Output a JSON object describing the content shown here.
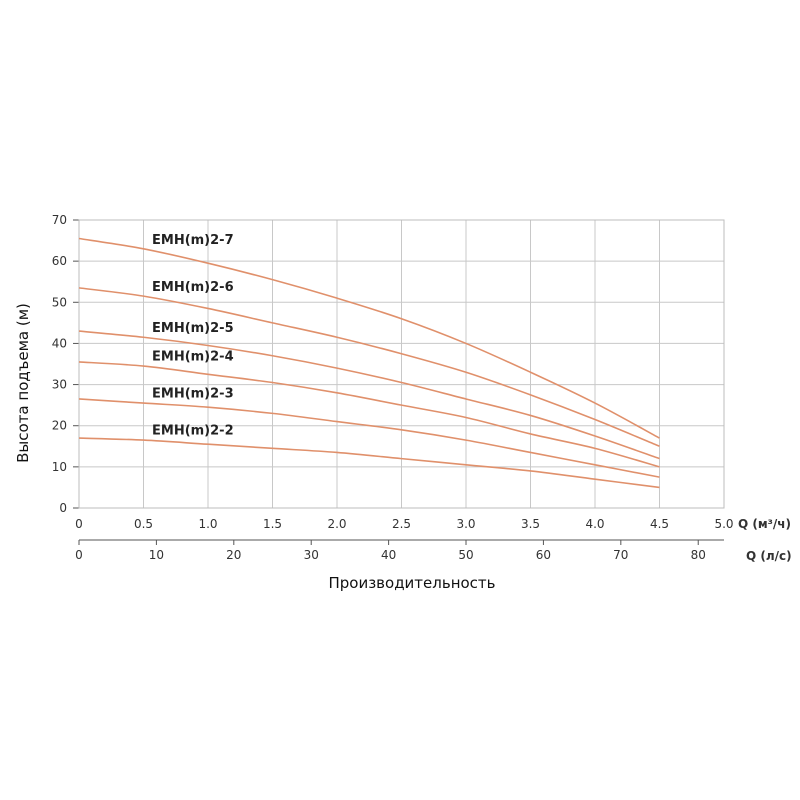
{
  "chart_data": {
    "type": "line",
    "ylabel": "Высота подъема (м)",
    "xlabel": "Производительность",
    "x_axis_primary": {
      "unit_label": "Q (м³/ч)",
      "range": [
        0,
        5.0
      ],
      "ticks": [
        0,
        0.5,
        1.0,
        1.5,
        2.0,
        2.5,
        3.0,
        3.5,
        4.0,
        4.5,
        5.0
      ],
      "tick_labels": [
        "0",
        "0.5",
        "1.0",
        "1.5",
        "2.0",
        "2.5",
        "3.0",
        "3.5",
        "4.0",
        "4.5",
        "5.0"
      ]
    },
    "x_axis_secondary": {
      "unit_label": "Q (л/с)",
      "range": [
        0,
        83.33
      ],
      "ticks": [
        0,
        10,
        20,
        30,
        40,
        50,
        60,
        70,
        80
      ],
      "tick_labels": [
        "0",
        "10",
        "20",
        "30",
        "40",
        "50",
        "60",
        "70",
        "80"
      ]
    },
    "y_axis": {
      "range": [
        0,
        70
      ],
      "ticks": [
        0,
        10,
        20,
        30,
        40,
        50,
        60,
        70
      ],
      "tick_labels": [
        "0",
        "10",
        "20",
        "30",
        "40",
        "50",
        "60",
        "70"
      ]
    },
    "grid": true,
    "curve_color": "#e0906b",
    "series": [
      {
        "name": "EMH(m)2-7",
        "x": [
          0,
          0.5,
          1.0,
          1.5,
          2.0,
          2.5,
          3.0,
          3.5,
          4.0,
          4.5
        ],
        "values": [
          65.5,
          63,
          59.5,
          55.5,
          51,
          46,
          40,
          33,
          25.5,
          17
        ]
      },
      {
        "name": "EMH(m)2-6",
        "x": [
          0,
          0.5,
          1.0,
          1.5,
          2.0,
          2.5,
          3.0,
          3.5,
          4.0,
          4.5
        ],
        "values": [
          53.5,
          51.5,
          48.5,
          45,
          41.5,
          37.5,
          33,
          27.5,
          21.5,
          15
        ]
      },
      {
        "name": "EMH(m)2-5",
        "x": [
          0,
          0.5,
          1.0,
          1.5,
          2.0,
          2.5,
          3.0,
          3.5,
          4.0,
          4.5
        ],
        "values": [
          43,
          41.5,
          39.5,
          37,
          34,
          30.5,
          26.5,
          22.5,
          17.5,
          12
        ]
      },
      {
        "name": "EMH(m)2-4",
        "x": [
          0,
          0.5,
          1.0,
          1.5,
          2.0,
          2.5,
          3.0,
          3.5,
          4.0,
          4.5
        ],
        "values": [
          35.5,
          34.5,
          32.5,
          30.5,
          28,
          25,
          22,
          18,
          14.5,
          10
        ]
      },
      {
        "name": "EMH(m)2-3",
        "x": [
          0,
          0.5,
          1.0,
          1.5,
          2.0,
          2.5,
          3.0,
          3.5,
          4.0,
          4.5
        ],
        "values": [
          26.5,
          25.5,
          24.5,
          23,
          21,
          19,
          16.5,
          13.5,
          10.5,
          7.5
        ]
      },
      {
        "name": "EMH(m)2-2",
        "x": [
          0,
          0.5,
          1.0,
          1.5,
          2.0,
          2.5,
          3.0,
          3.5,
          4.0,
          4.5
        ],
        "values": [
          17,
          16.5,
          15.5,
          14.5,
          13.5,
          12,
          10.5,
          9,
          7,
          5
        ]
      }
    ]
  }
}
